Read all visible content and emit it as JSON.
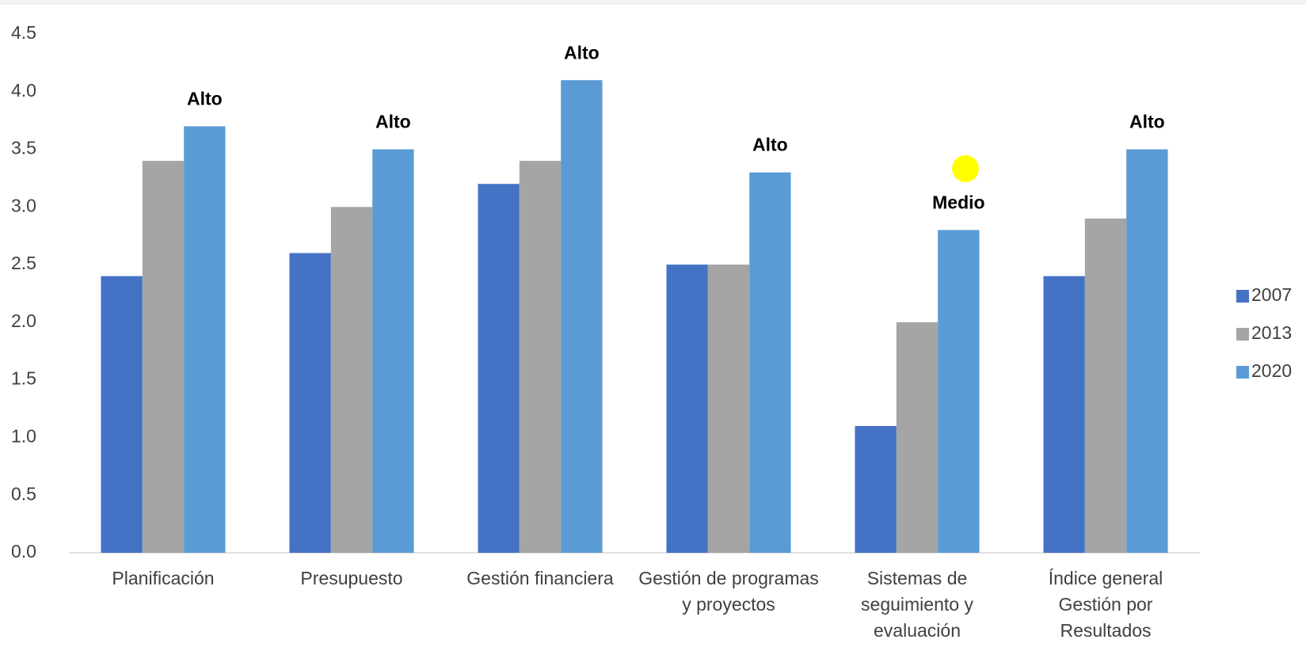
{
  "chart_data": {
    "type": "bar",
    "categories": [
      "Planificación",
      "Presupuesto",
      "Gestión financiera",
      "Gestión de programas y proyectos",
      "Sistemas de seguimiento y evaluación",
      "Índice general Gestión por Resultados"
    ],
    "series": [
      {
        "name": "2007",
        "color": "#4472c4",
        "values": [
          2.4,
          2.6,
          3.2,
          2.5,
          1.1,
          2.4
        ]
      },
      {
        "name": "2013",
        "color": "#a5a5a5",
        "values": [
          3.4,
          3.0,
          3.4,
          2.5,
          2.0,
          2.9
        ]
      },
      {
        "name": "2020",
        "color": "#5b9bd5",
        "values": [
          3.7,
          3.5,
          4.1,
          3.3,
          2.8,
          3.5
        ]
      }
    ],
    "annotations": [
      "Alto",
      "Alto",
      "Alto",
      "Alto",
      "Medio",
      "Alto"
    ],
    "ylim": [
      0,
      4.5
    ],
    "yticks": [
      {
        "value": 0,
        "label": "0.0"
      },
      0.5,
      {
        "value": 1,
        "label": "1.0"
      },
      1.5,
      {
        "value": 2,
        "label": "2.0"
      },
      2.5,
      {
        "value": 3,
        "label": "3.0"
      },
      3.5,
      {
        "value": 4,
        "label": "4.0"
      },
      4.5
    ],
    "legend": "right"
  }
}
